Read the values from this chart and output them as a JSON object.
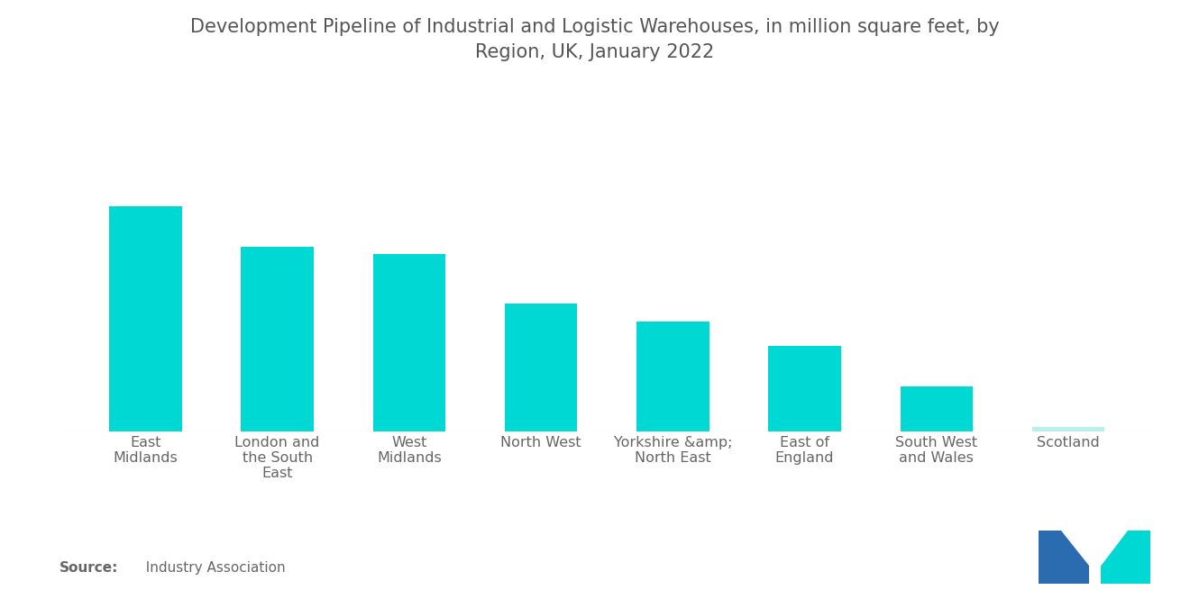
{
  "title": "Development Pipeline of Industrial and Logistic Warehouses, in million square feet, by\nRegion, UK, January 2022",
  "categories": [
    "East\nMidlands",
    "London and\nthe South\nEast",
    "West\nMidlands",
    "North West",
    "Yorkshire &amp;\nNorth East",
    "East of\nEngland",
    "South West\nand Wales",
    "Scotland"
  ],
  "values": [
    100,
    82,
    79,
    57,
    49,
    38,
    20,
    2
  ],
  "bar_color": "#00D8D4",
  "scotland_color": "#B8F0EE",
  "background_color": "#FFFFFF",
  "text_color": "#666666",
  "title_color": "#555555",
  "title_fontsize": 15,
  "label_fontsize": 11.5,
  "source_fontsize": 11
}
